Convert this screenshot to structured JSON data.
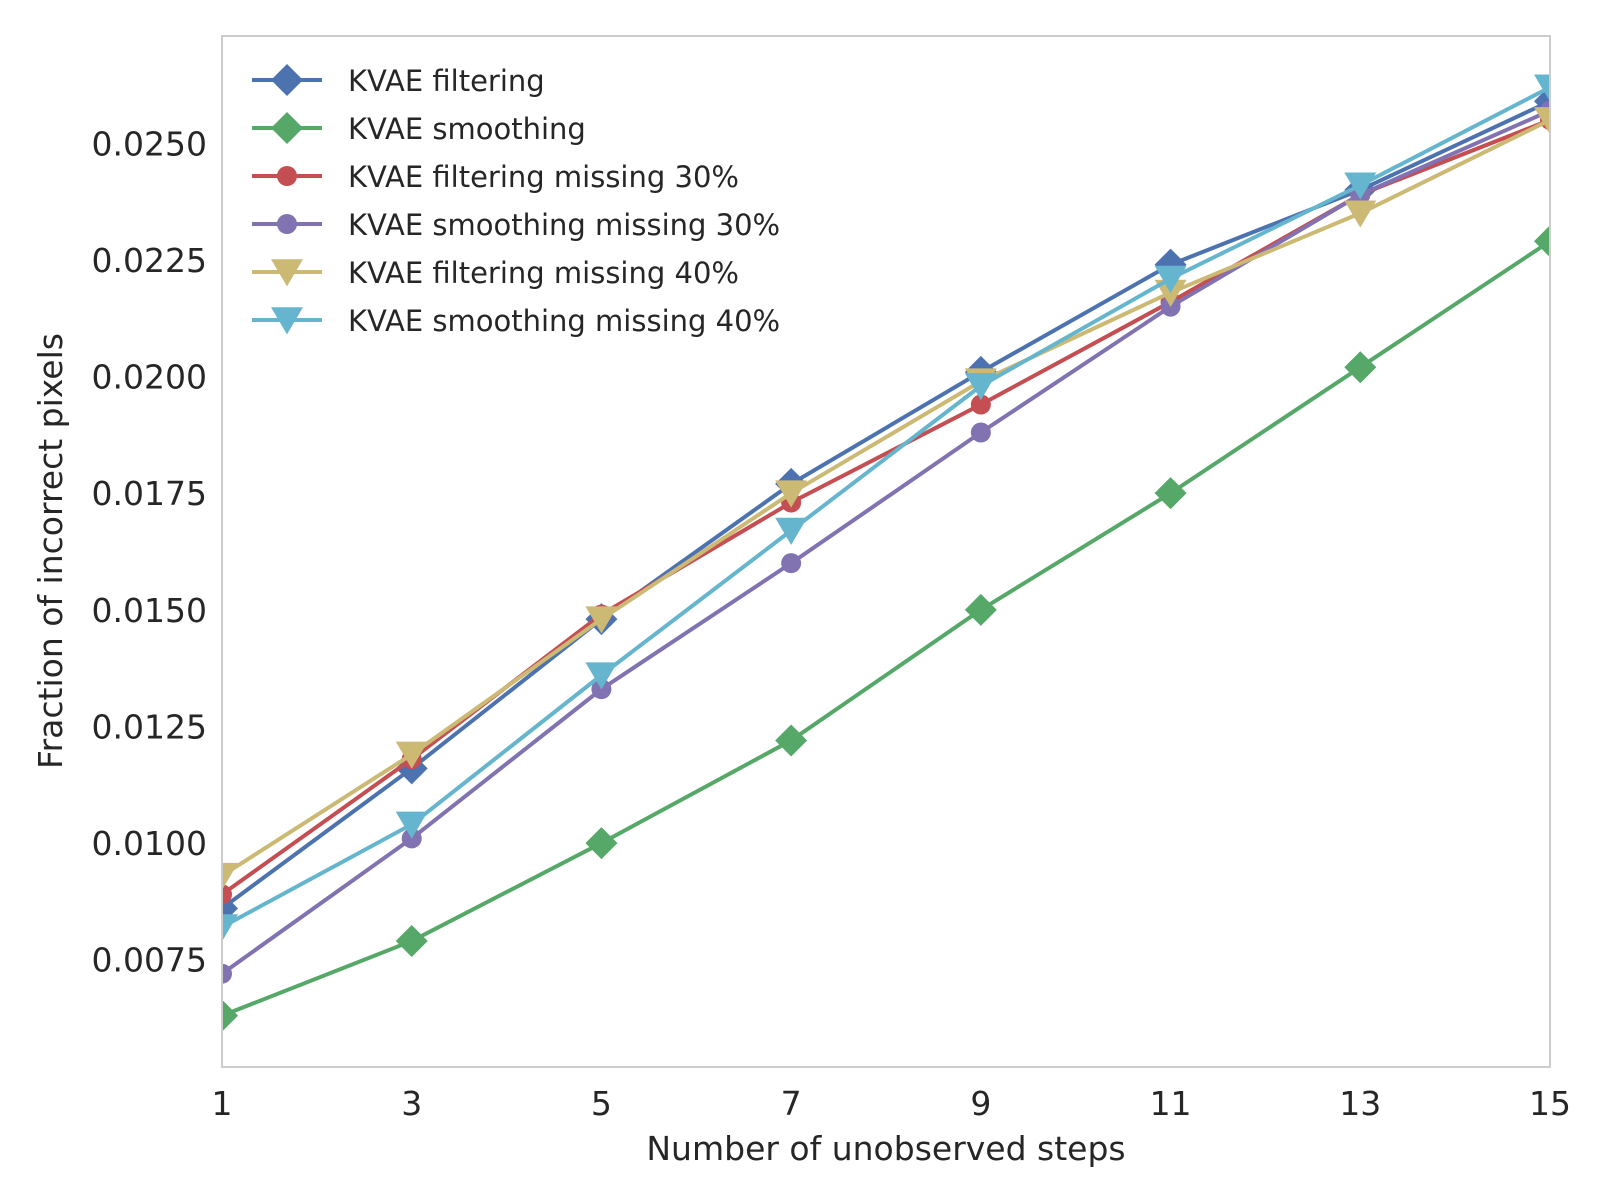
{
  "chart_data": {
    "type": "line",
    "title": "",
    "xlabel": "Number of unobserved steps",
    "ylabel": "Fraction of incorrect pixels",
    "x": [
      1,
      3,
      5,
      7,
      9,
      11,
      13,
      15
    ],
    "xlim": [
      1,
      15
    ],
    "ylim": [
      0.0052,
      0.0273
    ],
    "xticks": [
      1,
      3,
      5,
      7,
      9,
      11,
      13,
      15
    ],
    "yticks": [
      0.0075,
      0.01,
      0.0125,
      0.015,
      0.0175,
      0.02,
      0.0225,
      0.025
    ],
    "yticks_labels": [
      "0.0075",
      "0.0100",
      "0.0125",
      "0.0150",
      "0.0175",
      "0.0200",
      "0.0225",
      "0.0250"
    ],
    "grid": false,
    "legend_position": "top-left",
    "series": [
      {
        "name": "KVAE filtering",
        "color": "#4C72B0",
        "marker": "diamond",
        "values": [
          0.0086,
          0.0116,
          0.0148,
          0.0177,
          0.0201,
          0.0224,
          0.024,
          0.0259
        ]
      },
      {
        "name": "KVAE smoothing",
        "color": "#55A868",
        "marker": "diamond",
        "values": [
          0.0063,
          0.0079,
          0.01,
          0.0122,
          0.015,
          0.0175,
          0.0202,
          0.0229
        ]
      },
      {
        "name": "KVAE filtering missing 30%",
        "color": "#C44E52",
        "marker": "circle",
        "values": [
          0.0089,
          0.0118,
          0.0149,
          0.0173,
          0.0194,
          0.0216,
          0.0239,
          0.0255
        ]
      },
      {
        "name": "KVAE smoothing missing 30%",
        "color": "#8172B2",
        "marker": "circle",
        "values": [
          0.0072,
          0.0101,
          0.0133,
          0.016,
          0.0188,
          0.0215,
          0.0239,
          0.0257
        ]
      },
      {
        "name": "KVAE filtering missing 40%",
        "color": "#CCB974",
        "marker": "triangle-down",
        "values": [
          0.0093,
          0.0119,
          0.0148,
          0.0175,
          0.0199,
          0.0218,
          0.0235,
          0.0255
        ]
      },
      {
        "name": "KVAE smoothing missing 40%",
        "color": "#64B5CD",
        "marker": "triangle-down",
        "values": [
          0.0082,
          0.0104,
          0.0136,
          0.0167,
          0.0198,
          0.0221,
          0.0241,
          0.0262
        ]
      }
    ]
  }
}
